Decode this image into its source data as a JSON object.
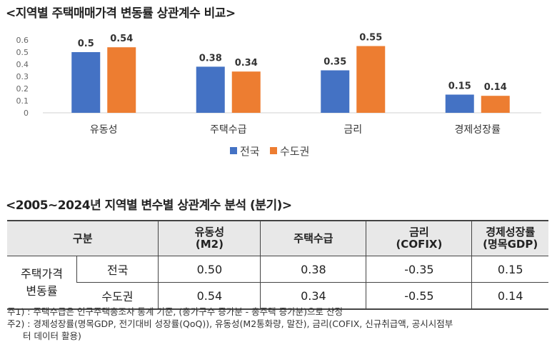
{
  "chart_data": {
    "type": "bar",
    "title": "<지역별 주택매매가격 변동률 상관계수 비교>",
    "categories": [
      "유동성",
      "주택수급",
      "금리",
      "경제성장률"
    ],
    "series": [
      {
        "name": "전국",
        "color": "#4472c4",
        "values": [
          0.5,
          0.38,
          0.35,
          0.15
        ],
        "labels": [
          "0.5",
          "0.38",
          "0.35",
          "0.15"
        ]
      },
      {
        "name": "수도권",
        "color": "#ed7d31",
        "values": [
          0.54,
          0.34,
          0.55,
          0.14
        ],
        "labels": [
          "0.54",
          "0.34",
          "0.55",
          "0.14"
        ]
      }
    ],
    "yticks": [
      "0",
      "0.1",
      "0.2",
      "0.3",
      "0.4",
      "0.5",
      "0.6"
    ],
    "ylim": [
      0,
      0.6
    ],
    "legend": "bottom",
    "grid": false
  },
  "table": {
    "title": "<2005~2024년 지역별 변수별 상관계수 분석 (분기)>",
    "header": [
      "구분",
      "유동성\n(M2)",
      "주택수급",
      "금리\n(COFIX)",
      "경제성장률\n(명목GDP)"
    ],
    "group_label": "주택가격\n변동률",
    "rows": [
      {
        "region": "전국",
        "values": [
          "0.50",
          "0.38",
          "-0.35",
          "0.15"
        ]
      },
      {
        "region": "수도권",
        "values": [
          "0.54",
          "0.34",
          "-0.55",
          "0.14"
        ]
      }
    ]
  },
  "notes": [
    "주1) : 주택수급은 인구주택총조사 통계 기준, (총가구수 증가분 - 총주택 증가분)으로 산정",
    "주2) : 경제성장률(명목GDP, 전기대비 성장률(QoQ)), 유동성(M2통화량, 말잔), 금리(COFIX, 신규취급액, 공시시점부",
    "터 데이터 활용)"
  ]
}
